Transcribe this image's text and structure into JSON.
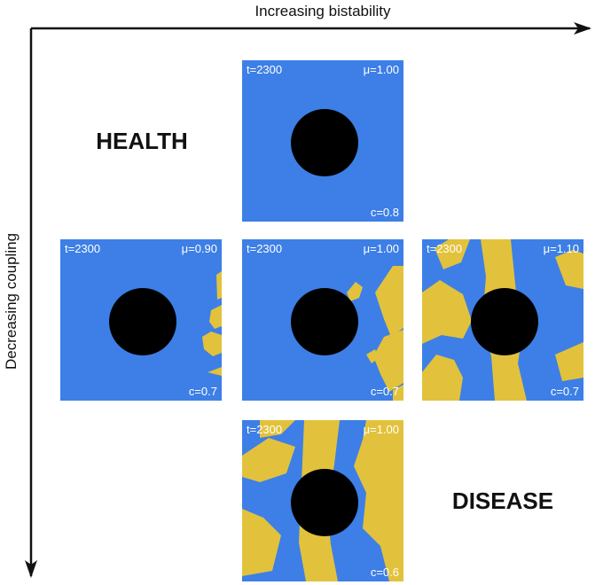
{
  "x_axis_label": "Increasing bistability",
  "y_axis_label": "Decreasing coupling",
  "labels": {
    "health": "HEALTH",
    "disease": "DISEASE"
  },
  "panels": [
    {
      "time": "t=2300",
      "mu": "μ=1.00",
      "coupling": "c=0.8"
    },
    {
      "time": "t=2300",
      "mu": "μ=0.90",
      "coupling": "c=0.7"
    },
    {
      "time": "t=2300",
      "mu": "μ=1.00",
      "coupling": "c=0.7"
    },
    {
      "time": "t=2300",
      "mu": "μ=1.10",
      "coupling": "c=0.7"
    },
    {
      "time": "t=2300",
      "mu": "μ=1.00",
      "coupling": "c=0.6"
    }
  ]
}
